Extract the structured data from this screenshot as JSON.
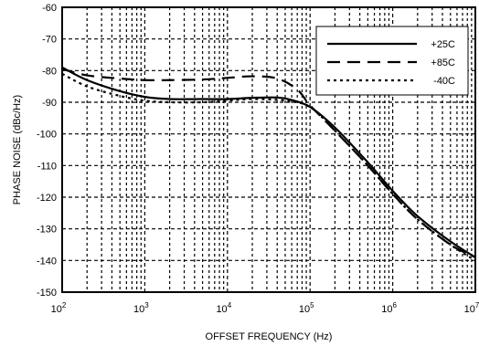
{
  "chart_data": {
    "type": "line",
    "title": "",
    "xlabel": "OFFSET FREQUENCY (Hz)",
    "ylabel": "PHASE NOISE (dBc/Hz)",
    "x_scale": "log",
    "xlim": [
      100,
      10000000
    ],
    "ylim": [
      -150,
      -60
    ],
    "x_ticks": [
      {
        "value": 100,
        "base": "10",
        "exp": "2"
      },
      {
        "value": 1000,
        "base": "10",
        "exp": "3"
      },
      {
        "value": 10000,
        "base": "10",
        "exp": "4"
      },
      {
        "value": 100000,
        "base": "10",
        "exp": "5"
      },
      {
        "value": 1000000,
        "base": "10",
        "exp": "6"
      },
      {
        "value": 10000000,
        "base": "10",
        "exp": "7"
      }
    ],
    "y_ticks": [
      "-60",
      "-70",
      "-80",
      "-90",
      "-100",
      "-110",
      "-120",
      "-130",
      "-140",
      "-150"
    ],
    "grid": true,
    "legend_position": "top-right",
    "series": [
      {
        "name": "+25C",
        "style": "solid",
        "x": [
          100,
          200,
          500,
          1000,
          2000,
          5000,
          10000,
          20000,
          40000,
          60000,
          100000,
          200000,
          500000,
          1000000,
          2000000,
          5000000,
          10000000
        ],
        "y": [
          -79,
          -83,
          -86.5,
          -88.3,
          -89,
          -89,
          -89,
          -88.6,
          -88.5,
          -89.3,
          -91.5,
          -98,
          -109,
          -118,
          -126,
          -134,
          -139
        ]
      },
      {
        "name": "+85C",
        "style": "dashed",
        "x": [
          100,
          200,
          500,
          1000,
          2000,
          5000,
          10000,
          20000,
          40000,
          70000,
          100000,
          200000,
          500000,
          1000000,
          2000000,
          5000000,
          10000000
        ],
        "y": [
          -79.5,
          -81.5,
          -82.5,
          -83,
          -83,
          -82.8,
          -82.3,
          -81.8,
          -82.5,
          -86,
          -91,
          -99,
          -110,
          -119,
          -127,
          -135,
          -139
        ]
      },
      {
        "name": "-40C",
        "style": "dotted",
        "x": [
          100,
          200,
          500,
          1000,
          2000,
          5000,
          10000,
          20000,
          50000,
          100000,
          200000,
          500000,
          1000000,
          2000000,
          5000000,
          10000000
        ],
        "y": [
          -81,
          -85,
          -88,
          -89.5,
          -90,
          -90,
          -89.5,
          -89,
          -89.5,
          -91.5,
          -99,
          -110,
          -119,
          -127,
          -135,
          -140
        ]
      }
    ]
  }
}
